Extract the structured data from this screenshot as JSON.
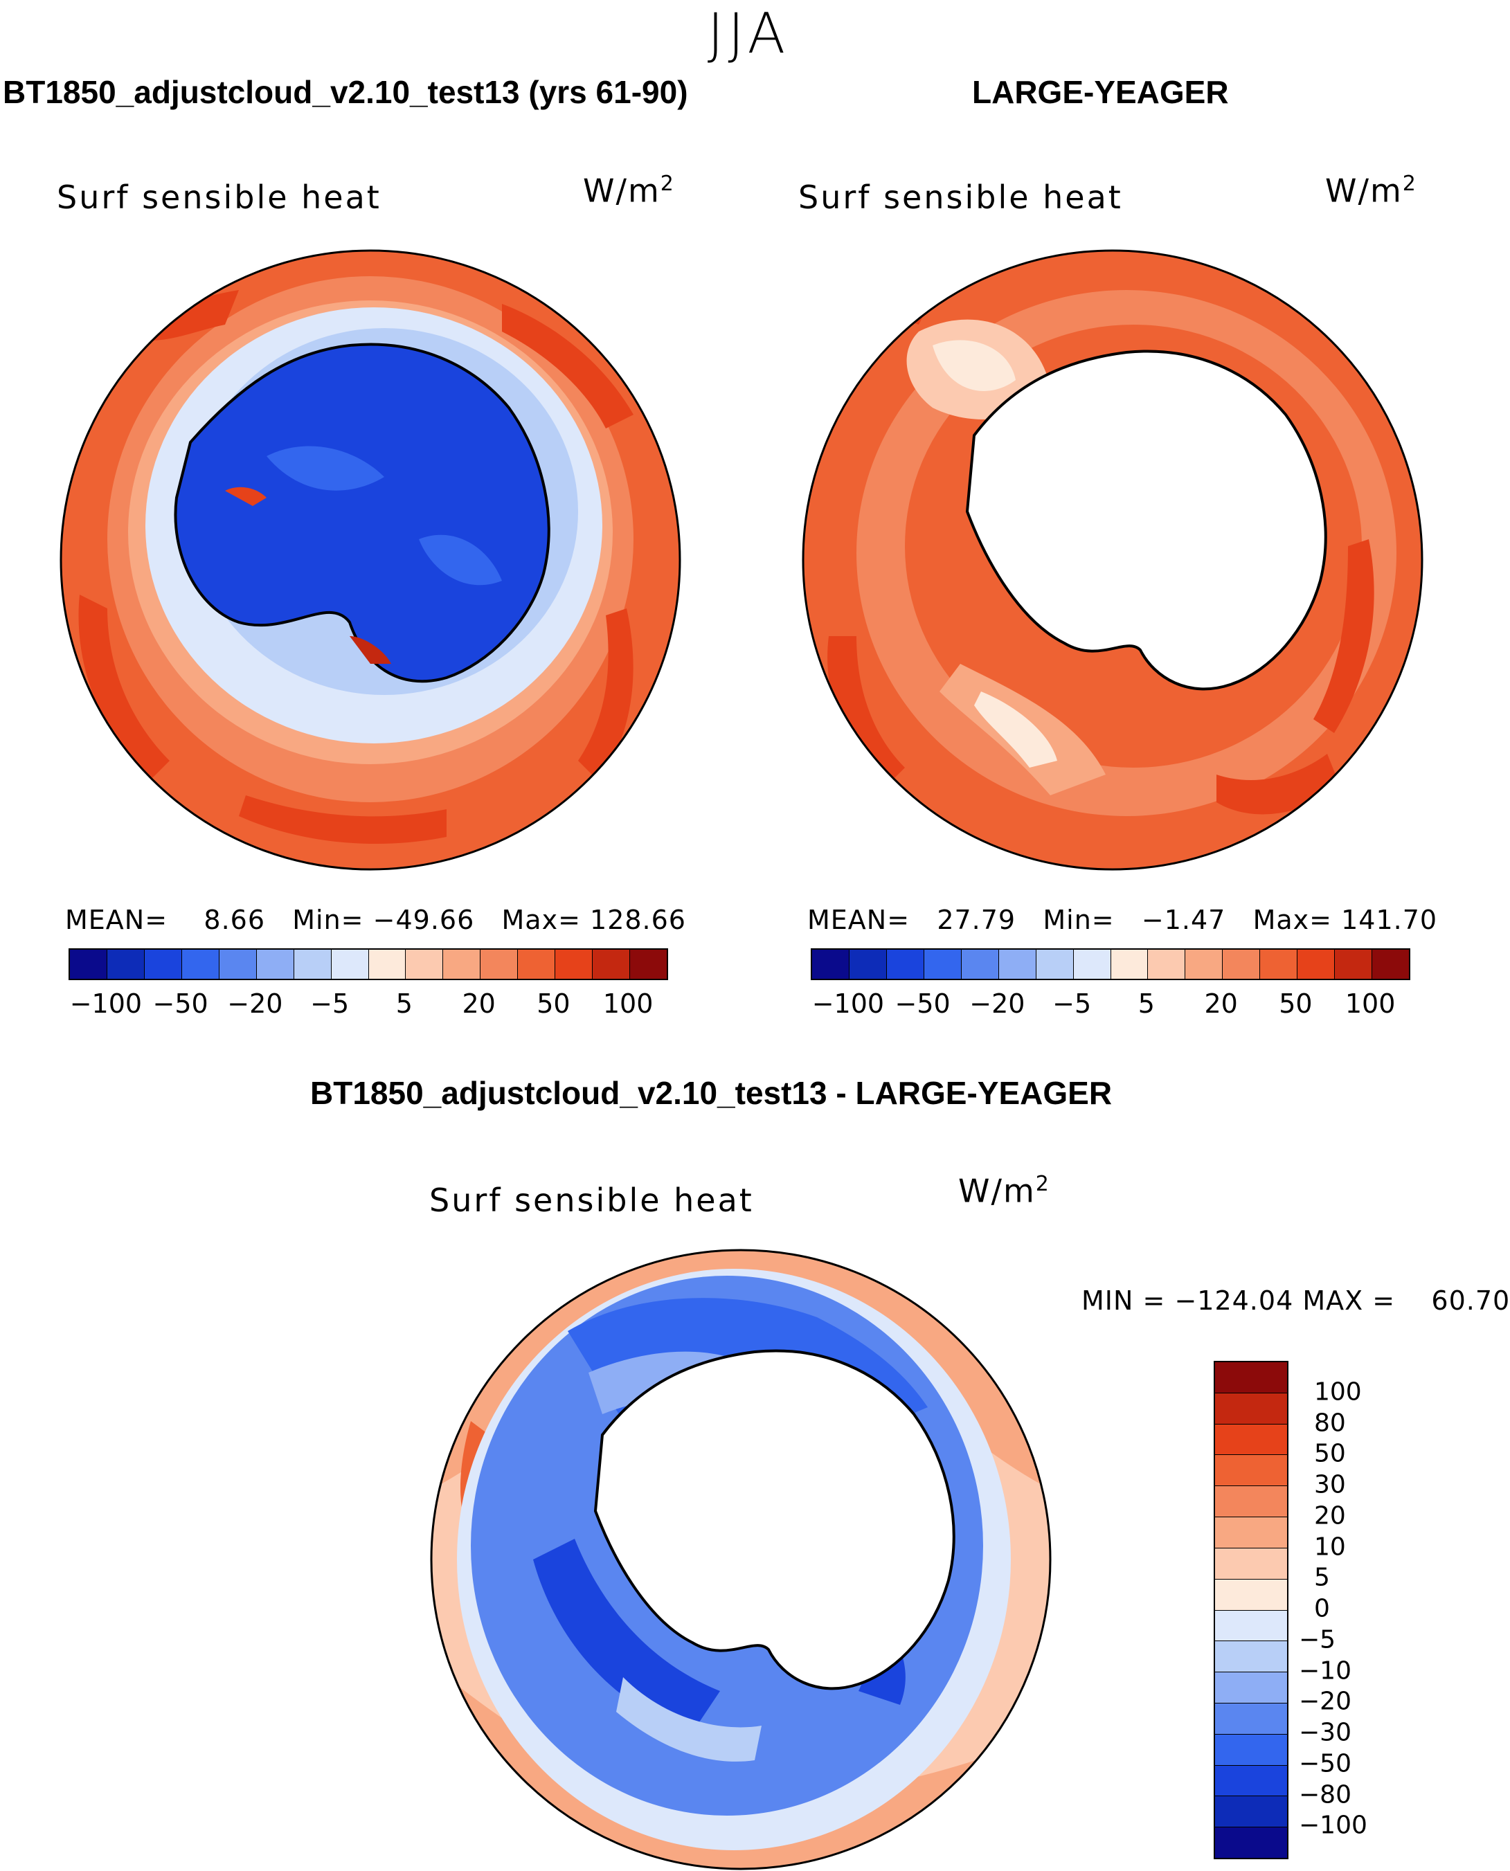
{
  "season": "JJA",
  "panels": {
    "model": {
      "title": "BT1850_adjustcloud_v2.10_test13 (yrs 61-90)",
      "variable": "Surf sensible heat",
      "units_base": "W/m",
      "units_exp": "2",
      "mean_label": "MEAN=",
      "mean": "8.66",
      "min_label": "Min=",
      "min": "−49.66",
      "max_label": "Max=",
      "max": "128.66"
    },
    "obs": {
      "title": "LARGE-YEAGER",
      "variable": "Surf sensible heat",
      "units_base": "W/m",
      "units_exp": "2",
      "mean_label": "MEAN=",
      "mean": "27.79",
      "min_label": "Min=",
      "min": "−1.47",
      "max_label": "Max=",
      "max": "141.70"
    },
    "diff": {
      "title": "BT1850_adjustcloud_v2.10_test13 - LARGE-YEAGER",
      "variable": "Surf sensible heat",
      "units_base": "W/m",
      "units_exp": "2",
      "min_label": "MIN =",
      "min": "−124.04",
      "max_label": "MAX =",
      "max": "60.70"
    }
  },
  "colorbars": {
    "abs_colors": [
      "#0a0a8c",
      "#0d2cb8",
      "#1a44dd",
      "#3366ee",
      "#5a86f0",
      "#8eaef5",
      "#b8cff7",
      "#dde8fb",
      "#fdeadb",
      "#fccab0",
      "#f8a882",
      "#f3865c",
      "#ee6233",
      "#e6421a",
      "#c42810",
      "#8c0a0a"
    ],
    "abs_ticks": [
      "−100",
      "−50",
      "−20",
      "−5",
      "5",
      "20",
      "50",
      "100"
    ],
    "diff_colors": [
      "#8c0a0a",
      "#c42810",
      "#e6421a",
      "#ee6233",
      "#f3865c",
      "#f8a882",
      "#fccab0",
      "#fdeadb",
      "#dde8fb",
      "#b8cff7",
      "#8eaef5",
      "#5a86f0",
      "#3366ee",
      "#1a44dd",
      "#0d2cb8",
      "#0a0a8c"
    ],
    "diff_ticks": [
      "100",
      "80",
      "50",
      "30",
      "20",
      "10",
      "5",
      "0",
      "−5",
      "−10",
      "−20",
      "−30",
      "−50",
      "−80",
      "−100"
    ]
  }
}
